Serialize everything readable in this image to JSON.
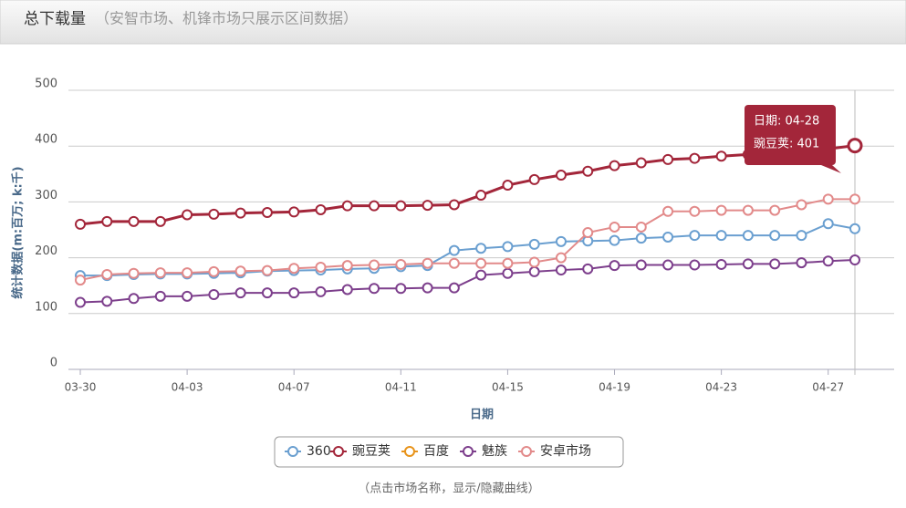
{
  "chart_data": {
    "type": "line",
    "title": "总下载量",
    "subtitle": "（安智市场、机锋市场只展示区间数据）",
    "y_label": "统计数据(m:百万; k:千)",
    "x_label": "日期",
    "categories": [
      "03-30",
      null,
      null,
      null,
      "04-03",
      null,
      null,
      null,
      "04-07",
      null,
      null,
      null,
      "04-11",
      null,
      null,
      null,
      "04-15",
      null,
      null,
      null,
      "04-19",
      null,
      null,
      null,
      "04-23",
      null,
      null,
      null,
      "04-27",
      null
    ],
    "series": [
      {
        "name": "360",
        "color": "#6a9fd0",
        "values": [
          168,
          168,
          170,
          171,
          171,
          172,
          173,
          176,
          177,
          178,
          180,
          181,
          184,
          186,
          213,
          217,
          220,
          224,
          229,
          230,
          231,
          235,
          237,
          240,
          240,
          240,
          240,
          240,
          261,
          252
        ]
      },
      {
        "name": "豌豆荚",
        "color": "#a3263a",
        "values": [
          260,
          265,
          265,
          265,
          277,
          278,
          280,
          281,
          282,
          286,
          293,
          293,
          293,
          294,
          295,
          312,
          330,
          340,
          348,
          355,
          365,
          370,
          376,
          378,
          382,
          385,
          388,
          392,
          395,
          401
        ]
      },
      {
        "name": "百度",
        "color": "#e8931a",
        "values": [
          null,
          null,
          null,
          null,
          null,
          null,
          null,
          null,
          null,
          null,
          null,
          null,
          null,
          null,
          null,
          null,
          null,
          null,
          null,
          null,
          null,
          null,
          null,
          null,
          null,
          null,
          null,
          null,
          null,
          null
        ]
      },
      {
        "name": "魅族",
        "color": "#7d3f8c",
        "values": [
          120,
          122,
          127,
          131,
          131,
          134,
          137,
          137,
          137,
          139,
          143,
          145,
          145,
          146,
          146,
          169,
          172,
          175,
          178,
          180,
          186,
          187,
          187,
          187,
          188,
          189,
          189,
          191,
          194,
          196
        ]
      },
      {
        "name": "安卓市场",
        "color": "#e28a8a",
        "values": [
          160,
          170,
          172,
          173,
          173,
          175,
          176,
          177,
          181,
          183,
          186,
          187,
          188,
          190,
          190,
          190,
          190,
          192,
          200,
          245,
          255,
          255,
          283,
          283,
          285,
          285,
          285,
          295,
          305,
          305
        ]
      }
    ],
    "ylim": [
      0,
      500
    ],
    "yticks": [
      0,
      100,
      200,
      300,
      400,
      500
    ],
    "grid": true,
    "tooltip": {
      "lines": [
        "日期: 04-28",
        "豌豆荚: 401"
      ]
    },
    "note": "（点击市场名称，显示/隐藏曲线）"
  }
}
